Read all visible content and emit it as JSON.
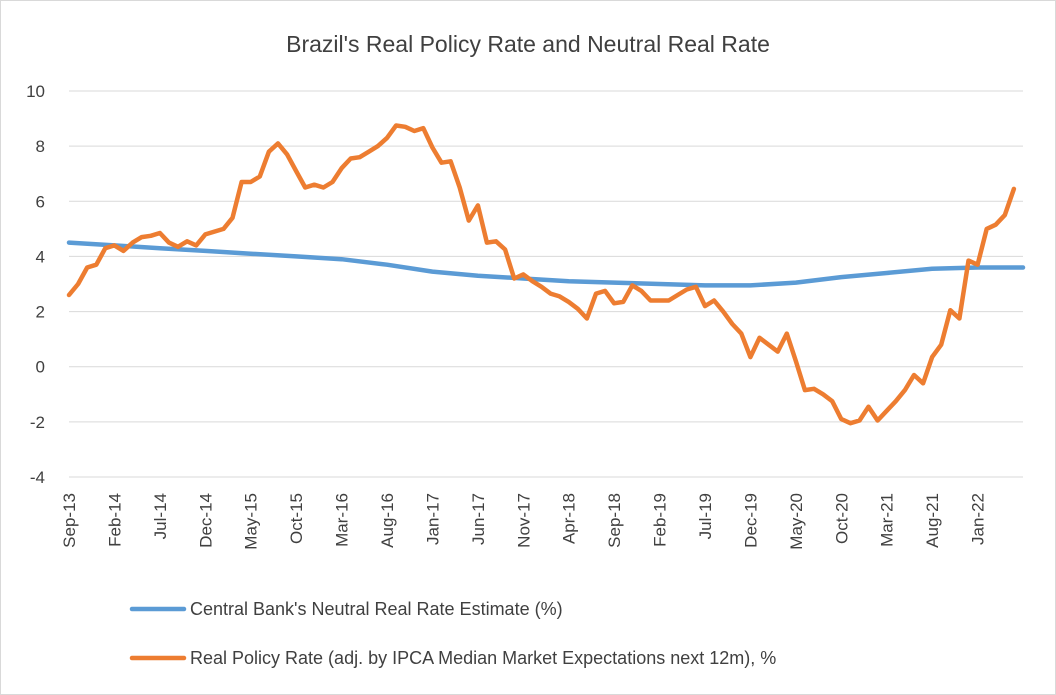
{
  "chart_data": {
    "type": "line",
    "title": "Brazil's Real Policy Rate and Neutral Real Rate",
    "xlabel": "",
    "ylabel": "",
    "ylim": [
      -4,
      10
    ],
    "yticks": [
      10,
      8,
      6,
      4,
      2,
      0,
      -2,
      -4
    ],
    "grid": true,
    "legend_position": "bottom",
    "x_tick_labels": [
      "Sep-13",
      "Feb-14",
      "Jul-14",
      "Dec-14",
      "May-15",
      "Oct-15",
      "Mar-16",
      "Aug-16",
      "Jan-17",
      "Jun-17",
      "Nov-17",
      "Apr-18",
      "Sep-18",
      "Feb-19",
      "Jul-19",
      "Dec-19",
      "May-20",
      "Oct-20",
      "Mar-21",
      "Aug-21",
      "Jan-22"
    ],
    "x_start": "2013-09",
    "x_end": "2022-06",
    "series": [
      {
        "name": "Central Bank's Neutral Real Rate Estimate (%)",
        "color": "#5b9bd5",
        "points": [
          [
            "2013-09",
            4.5
          ],
          [
            "2014-02",
            4.4
          ],
          [
            "2014-07",
            4.3
          ],
          [
            "2014-12",
            4.2
          ],
          [
            "2015-05",
            4.1
          ],
          [
            "2015-10",
            4.0
          ],
          [
            "2016-03",
            3.9
          ],
          [
            "2016-08",
            3.7
          ],
          [
            "2017-01",
            3.45
          ],
          [
            "2017-06",
            3.3
          ],
          [
            "2017-11",
            3.2
          ],
          [
            "2018-04",
            3.1
          ],
          [
            "2018-09",
            3.05
          ],
          [
            "2019-02",
            3.0
          ],
          [
            "2019-07",
            2.95
          ],
          [
            "2019-12",
            2.95
          ],
          [
            "2020-05",
            3.05
          ],
          [
            "2020-10",
            3.25
          ],
          [
            "2021-03",
            3.4
          ],
          [
            "2021-08",
            3.55
          ],
          [
            "2022-01",
            3.6
          ],
          [
            "2022-06",
            3.6
          ]
        ]
      },
      {
        "name": "Real Policy Rate (adj. by IPCA Median Market Expectations next 12m), %",
        "color": "#ed7d31",
        "points": [
          [
            "2013-09",
            2.6
          ],
          [
            "2013-10",
            3.0
          ],
          [
            "2013-11",
            3.6
          ],
          [
            "2013-12",
            3.7
          ],
          [
            "2014-01",
            4.3
          ],
          [
            "2014-02",
            4.4
          ],
          [
            "2014-03",
            4.2
          ],
          [
            "2014-04",
            4.5
          ],
          [
            "2014-05",
            4.7
          ],
          [
            "2014-06",
            4.75
          ],
          [
            "2014-07",
            4.85
          ],
          [
            "2014-08",
            4.5
          ],
          [
            "2014-09",
            4.35
          ],
          [
            "2014-10",
            4.55
          ],
          [
            "2014-11",
            4.4
          ],
          [
            "2014-12",
            4.8
          ],
          [
            "2015-01",
            4.9
          ],
          [
            "2015-02",
            5.0
          ],
          [
            "2015-03",
            5.4
          ],
          [
            "2015-04",
            6.7
          ],
          [
            "2015-05",
            6.7
          ],
          [
            "2015-06",
            6.9
          ],
          [
            "2015-07",
            7.8
          ],
          [
            "2015-08",
            8.1
          ],
          [
            "2015-09",
            7.7
          ],
          [
            "2015-10",
            7.1
          ],
          [
            "2015-11",
            6.5
          ],
          [
            "2015-12",
            6.6
          ],
          [
            "2016-01",
            6.5
          ],
          [
            "2016-02",
            6.7
          ],
          [
            "2016-03",
            7.2
          ],
          [
            "2016-04",
            7.55
          ],
          [
            "2016-05",
            7.6
          ],
          [
            "2016-06",
            7.8
          ],
          [
            "2016-07",
            8.0
          ],
          [
            "2016-08",
            8.3
          ],
          [
            "2016-09",
            8.75
          ],
          [
            "2016-10",
            8.7
          ],
          [
            "2016-11",
            8.55
          ],
          [
            "2016-12",
            8.65
          ],
          [
            "2017-01",
            7.95
          ],
          [
            "2017-02",
            7.4
          ],
          [
            "2017-03",
            7.45
          ],
          [
            "2017-04",
            6.5
          ],
          [
            "2017-05",
            5.3
          ],
          [
            "2017-06",
            5.85
          ],
          [
            "2017-07",
            4.5
          ],
          [
            "2017-08",
            4.55
          ],
          [
            "2017-09",
            4.25
          ],
          [
            "2017-10",
            3.2
          ],
          [
            "2017-11",
            3.35
          ],
          [
            "2017-12",
            3.1
          ],
          [
            "2018-01",
            2.9
          ],
          [
            "2018-02",
            2.65
          ],
          [
            "2018-03",
            2.55
          ],
          [
            "2018-04",
            2.35
          ],
          [
            "2018-05",
            2.1
          ],
          [
            "2018-06",
            1.75
          ],
          [
            "2018-07",
            2.65
          ],
          [
            "2018-08",
            2.75
          ],
          [
            "2018-09",
            2.3
          ],
          [
            "2018-10",
            2.35
          ],
          [
            "2018-11",
            2.95
          ],
          [
            "2018-12",
            2.75
          ],
          [
            "2019-01",
            2.4
          ],
          [
            "2019-02",
            2.4
          ],
          [
            "2019-03",
            2.4
          ],
          [
            "2019-04",
            2.6
          ],
          [
            "2019-05",
            2.8
          ],
          [
            "2019-06",
            2.9
          ],
          [
            "2019-07",
            2.2
          ],
          [
            "2019-08",
            2.4
          ],
          [
            "2019-09",
            2.0
          ],
          [
            "2019-10",
            1.55
          ],
          [
            "2019-11",
            1.2
          ],
          [
            "2019-12",
            0.35
          ],
          [
            "2020-01",
            1.05
          ],
          [
            "2020-02",
            0.8
          ],
          [
            "2020-03",
            0.55
          ],
          [
            "2020-04",
            1.2
          ],
          [
            "2020-05",
            0.2
          ],
          [
            "2020-06",
            -0.85
          ],
          [
            "2020-07",
            -0.8
          ],
          [
            "2020-08",
            -1.0
          ],
          [
            "2020-09",
            -1.25
          ],
          [
            "2020-10",
            -1.9
          ],
          [
            "2020-11",
            -2.05
          ],
          [
            "2020-12",
            -1.95
          ],
          [
            "2021-01",
            -1.45
          ],
          [
            "2021-02",
            -1.95
          ],
          [
            "2021-03",
            -1.6
          ],
          [
            "2021-04",
            -1.25
          ],
          [
            "2021-05",
            -0.85
          ],
          [
            "2021-06",
            -0.3
          ],
          [
            "2021-07",
            -0.6
          ],
          [
            "2021-08",
            0.35
          ],
          [
            "2021-09",
            0.8
          ],
          [
            "2021-10",
            2.05
          ],
          [
            "2021-11",
            1.75
          ],
          [
            "2021-12",
            3.85
          ],
          [
            "2022-01",
            3.7
          ],
          [
            "2022-02",
            5.0
          ],
          [
            "2022-03",
            5.15
          ],
          [
            "2022-04",
            5.5
          ],
          [
            "2022-05",
            6.45
          ]
        ]
      }
    ]
  }
}
